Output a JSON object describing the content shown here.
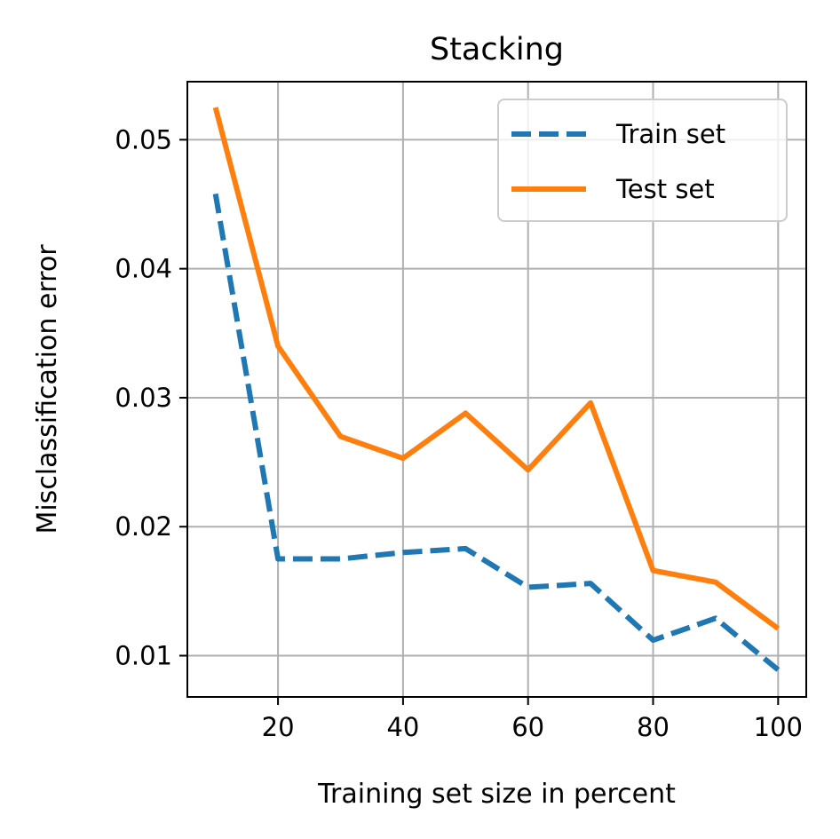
{
  "chart_data": {
    "type": "line",
    "title": "Stacking",
    "xlabel": "Training set size in percent",
    "ylabel": "Misclassification error",
    "xlim": [
      5.5,
      104.5
    ],
    "ylim": [
      0.0068,
      0.0545
    ],
    "x_ticks": [
      20,
      40,
      60,
      80,
      100
    ],
    "y_ticks": [
      0.01,
      0.02,
      0.03,
      0.04,
      0.05
    ],
    "x_tick_labels": [
      "20",
      "40",
      "60",
      "80",
      "100"
    ],
    "y_tick_labels": [
      "0.01",
      "0.02",
      "0.03",
      "0.04",
      "0.05"
    ],
    "grid": true,
    "legend_position": "upper right",
    "x": [
      10,
      20,
      30,
      40,
      50,
      60,
      70,
      80,
      90,
      100
    ],
    "series": [
      {
        "name": "Train set",
        "color": "#1f77b4",
        "linestyle": "dashed",
        "values": [
          0.0458,
          0.0175,
          0.0175,
          0.018,
          0.0183,
          0.0153,
          0.0156,
          0.0112,
          0.0129,
          0.0089
        ]
      },
      {
        "name": "Test set",
        "color": "#ff7f0e",
        "linestyle": "solid",
        "values": [
          0.0525,
          0.034,
          0.027,
          0.0253,
          0.0288,
          0.0244,
          0.0296,
          0.0166,
          0.0157,
          0.0121
        ]
      }
    ]
  }
}
